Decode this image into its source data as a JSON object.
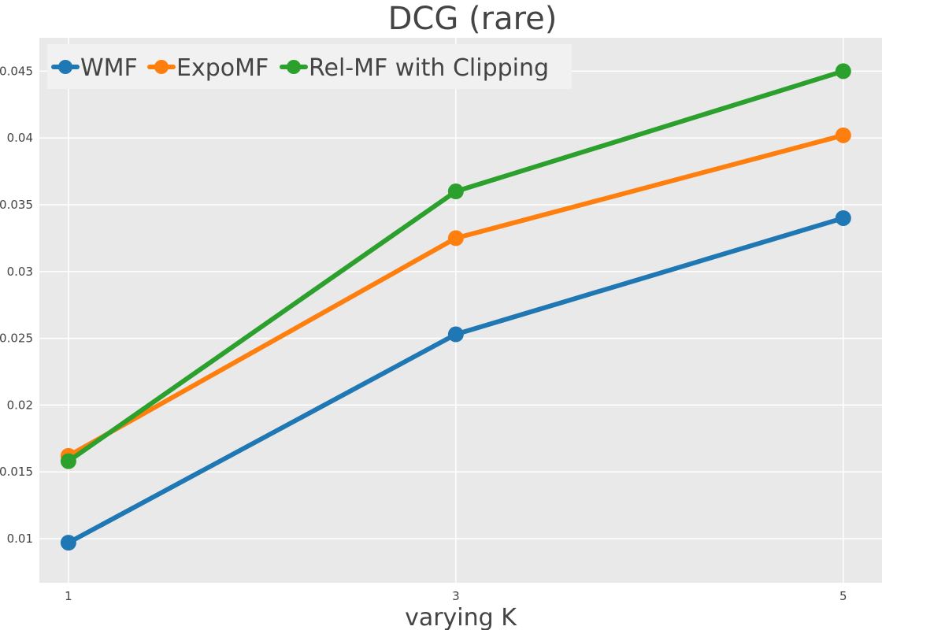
{
  "chart_data": {
    "type": "line",
    "title": "DCG (rare)",
    "xlabel": "varying K",
    "ylabel": "",
    "x": [
      1,
      3,
      5
    ],
    "x_tick_labels": [
      "1",
      "3",
      "5"
    ],
    "y_ticks": [
      0.01,
      0.015,
      0.02,
      0.025,
      0.03,
      0.035,
      0.04,
      0.045
    ],
    "y_tick_labels": [
      "0.01",
      "0.015",
      "0.02",
      "0.025",
      "0.03",
      "0.035",
      "0.04",
      "0.045"
    ],
    "xlim": [
      0.85,
      5.2
    ],
    "ylim": [
      0.0067,
      0.0475
    ],
    "grid": true,
    "legend_position": "top-left",
    "plot_background": "#e9e9e9",
    "series": [
      {
        "name": "WMF",
        "color": "#1f77b4",
        "values": [
          0.0097,
          0.0253,
          0.034
        ]
      },
      {
        "name": "ExpoMF",
        "color": "#ff7f0e",
        "values": [
          0.0162,
          0.0325,
          0.0402
        ]
      },
      {
        "name": "Rel-MF with Clipping",
        "color": "#2ca02c",
        "values": [
          0.0158,
          0.036,
          0.045
        ]
      }
    ]
  }
}
